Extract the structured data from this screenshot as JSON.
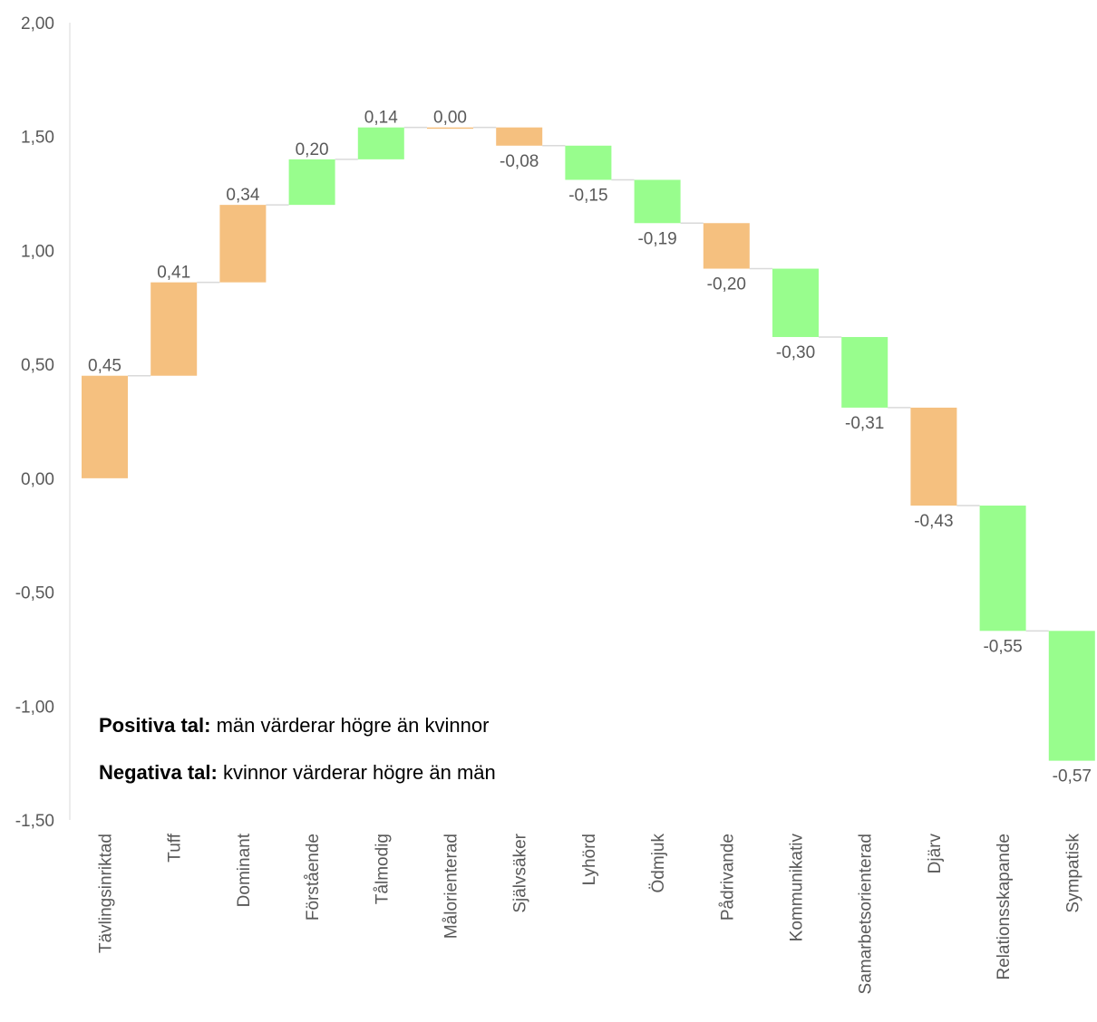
{
  "colors": {
    "positive": "#f5c07f",
    "negative": "#98fd8d",
    "connector": "#d9d9d9",
    "axis": "#d9d9d9",
    "text": "#595959"
  },
  "notes": {
    "positive_label": "Positiva tal:",
    "positive_text": " män värderar högre än kvinnor",
    "negative_label": "Negativa tal:",
    "negative_text": " kvinnor värderar högre än män"
  },
  "chart_data": {
    "type": "waterfall",
    "categories": [
      "Tävlingsinriktad",
      "Tuff",
      "Dominant",
      "Förstående",
      "Tålmodig",
      "Målorienterad",
      "Självsäker",
      "Lyhörd",
      "Ödmjuk",
      "Pådrivande",
      "Kommunikativ",
      "Samarbetsorienterad",
      "Djärv",
      "Relationsskapande",
      "Sympatisk"
    ],
    "values": [
      0.45,
      0.41,
      0.34,
      0.2,
      0.14,
      0.0,
      -0.08,
      -0.15,
      -0.19,
      -0.2,
      -0.3,
      -0.31,
      -0.43,
      -0.55,
      -0.57
    ],
    "value_labels": [
      "0,45",
      "0,41",
      "0,34",
      "0,20",
      "0,14",
      "0,00",
      "-0,08",
      "-0,15",
      "-0,19",
      "-0,20",
      "-0,30",
      "-0,31",
      "-0,43",
      "-0,55",
      "-0,57"
    ],
    "bar_colors": [
      "positive",
      "positive",
      "positive",
      "negative",
      "negative",
      "positive",
      "positive",
      "negative",
      "negative",
      "positive",
      "negative",
      "negative",
      "positive",
      "negative",
      "negative"
    ],
    "ylim": [
      -1.5,
      2.0
    ],
    "yticks": [
      2.0,
      1.5,
      1.0,
      0.5,
      0.0,
      -0.5,
      -1.0,
      -1.5
    ],
    "ytick_labels": [
      "2,00",
      "1,50",
      "1,00",
      "0,50",
      "0,00",
      "-0,50",
      "-1,00",
      "-1,50"
    ],
    "grid": false,
    "title": "",
    "xlabel": "",
    "ylabel": ""
  }
}
